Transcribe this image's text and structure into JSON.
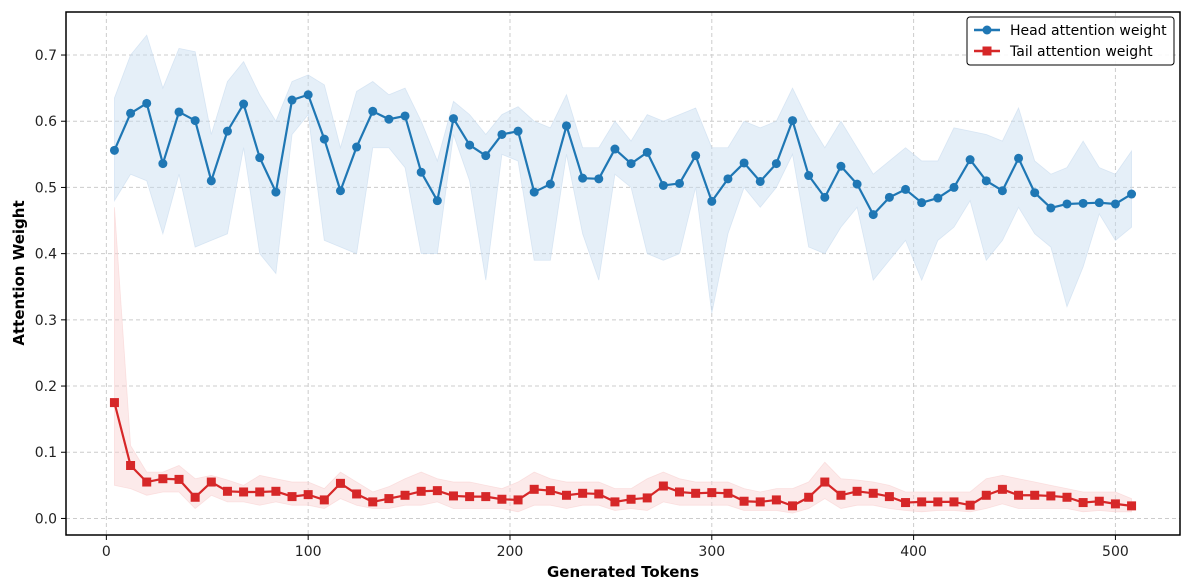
{
  "chart_data": {
    "type": "line",
    "title": "",
    "xlabel": "Generated Tokens",
    "ylabel": "Attention Weight",
    "xlim": [
      -20,
      532
    ],
    "ylim": [
      -0.025,
      0.765
    ],
    "xticks": [
      0,
      100,
      200,
      300,
      400,
      500
    ],
    "yticks": [
      0.0,
      0.1,
      0.2,
      0.3,
      0.4,
      0.5,
      0.6,
      0.7
    ],
    "grid": true,
    "legend_position": "top-right",
    "x": [
      4,
      12,
      20,
      28,
      36,
      44,
      52,
      60,
      68,
      76,
      84,
      92,
      100,
      108,
      116,
      124,
      132,
      140,
      148,
      156,
      164,
      172,
      180,
      188,
      196,
      204,
      212,
      220,
      228,
      236,
      244,
      252,
      260,
      268,
      276,
      284,
      292,
      300,
      308,
      316,
      324,
      332,
      340,
      348,
      356,
      364,
      372,
      380,
      388,
      396,
      404,
      412,
      420,
      428,
      436,
      444,
      452,
      460,
      468,
      476,
      484,
      492,
      500,
      508
    ],
    "series": [
      {
        "name": "Head attention weight",
        "color": "#1f77b4",
        "band_color": "#c6dbef",
        "marker": "circle",
        "values": [
          0.556,
          0.612,
          0.627,
          0.536,
          0.614,
          0.601,
          0.51,
          0.585,
          0.626,
          0.545,
          0.493,
          0.632,
          0.64,
          0.573,
          0.495,
          0.561,
          0.615,
          0.603,
          0.608,
          0.523,
          0.48,
          0.604,
          0.564,
          0.548,
          0.58,
          0.585,
          0.493,
          0.505,
          0.593,
          0.514,
          0.513,
          0.558,
          0.536,
          0.553,
          0.503,
          0.506,
          0.548,
          0.479,
          0.513,
          0.537,
          0.509,
          0.536,
          0.601,
          0.518,
          0.485,
          0.532,
          0.505,
          0.459,
          0.485,
          0.497,
          0.477,
          0.484,
          0.5,
          0.542,
          0.51,
          0.495,
          0.544,
          0.492,
          0.469,
          0.475,
          0.476,
          0.477,
          0.475,
          0.49
        ],
        "upper": [
          0.635,
          0.7,
          0.73,
          0.65,
          0.71,
          0.705,
          0.58,
          0.66,
          0.69,
          0.64,
          0.6,
          0.66,
          0.67,
          0.655,
          0.56,
          0.645,
          0.66,
          0.64,
          0.65,
          0.6,
          0.54,
          0.63,
          0.61,
          0.58,
          0.61,
          0.622,
          0.6,
          0.59,
          0.64,
          0.56,
          0.56,
          0.6,
          0.57,
          0.61,
          0.6,
          0.61,
          0.62,
          0.56,
          0.56,
          0.6,
          0.59,
          0.6,
          0.65,
          0.6,
          0.56,
          0.6,
          0.56,
          0.52,
          0.54,
          0.56,
          0.54,
          0.54,
          0.59,
          0.585,
          0.58,
          0.57,
          0.62,
          0.54,
          0.52,
          0.53,
          0.57,
          0.53,
          0.52,
          0.555
        ],
        "lower": [
          0.48,
          0.52,
          0.51,
          0.43,
          0.52,
          0.41,
          0.42,
          0.43,
          0.56,
          0.4,
          0.37,
          0.58,
          0.61,
          0.42,
          0.41,
          0.4,
          0.56,
          0.56,
          0.53,
          0.4,
          0.4,
          0.58,
          0.51,
          0.36,
          0.55,
          0.54,
          0.39,
          0.39,
          0.55,
          0.43,
          0.36,
          0.52,
          0.5,
          0.4,
          0.39,
          0.4,
          0.5,
          0.31,
          0.43,
          0.5,
          0.47,
          0.5,
          0.55,
          0.41,
          0.4,
          0.44,
          0.47,
          0.36,
          0.39,
          0.42,
          0.36,
          0.42,
          0.44,
          0.48,
          0.39,
          0.42,
          0.47,
          0.43,
          0.41,
          0.32,
          0.38,
          0.46,
          0.42,
          0.44
        ]
      },
      {
        "name": "Tail attention weight",
        "color": "#d62728",
        "band_color": "#f8d0d0",
        "marker": "square",
        "values": [
          0.175,
          0.08,
          0.055,
          0.06,
          0.059,
          0.032,
          0.055,
          0.041,
          0.04,
          0.04,
          0.041,
          0.033,
          0.036,
          0.028,
          0.053,
          0.037,
          0.025,
          0.03,
          0.035,
          0.041,
          0.042,
          0.034,
          0.033,
          0.033,
          0.029,
          0.028,
          0.044,
          0.042,
          0.035,
          0.038,
          0.037,
          0.025,
          0.029,
          0.031,
          0.049,
          0.04,
          0.038,
          0.039,
          0.038,
          0.026,
          0.025,
          0.028,
          0.019,
          0.032,
          0.055,
          0.035,
          0.041,
          0.038,
          0.033,
          0.024,
          0.025,
          0.025,
          0.025,
          0.02,
          0.035,
          0.044,
          0.035,
          0.035,
          0.034,
          0.032,
          0.024,
          0.026,
          0.022,
          0.019
        ],
        "upper": [
          0.47,
          0.11,
          0.07,
          0.07,
          0.08,
          0.06,
          0.065,
          0.058,
          0.05,
          0.065,
          0.06,
          0.055,
          0.055,
          0.045,
          0.07,
          0.055,
          0.04,
          0.048,
          0.06,
          0.07,
          0.06,
          0.055,
          0.055,
          0.05,
          0.045,
          0.055,
          0.07,
          0.06,
          0.055,
          0.055,
          0.055,
          0.045,
          0.045,
          0.06,
          0.07,
          0.06,
          0.055,
          0.055,
          0.055,
          0.045,
          0.04,
          0.045,
          0.045,
          0.055,
          0.085,
          0.06,
          0.058,
          0.055,
          0.05,
          0.04,
          0.04,
          0.04,
          0.04,
          0.04,
          0.06,
          0.065,
          0.06,
          0.055,
          0.05,
          0.045,
          0.04,
          0.04,
          0.04,
          0.03
        ],
        "lower": [
          0.05,
          0.045,
          0.035,
          0.04,
          0.04,
          0.015,
          0.035,
          0.025,
          0.025,
          0.02,
          0.025,
          0.02,
          0.02,
          0.015,
          0.03,
          0.02,
          0.015,
          0.015,
          0.02,
          0.02,
          0.025,
          0.015,
          0.015,
          0.015,
          0.015,
          0.01,
          0.02,
          0.02,
          0.015,
          0.02,
          0.02,
          0.012,
          0.015,
          0.012,
          0.025,
          0.02,
          0.02,
          0.02,
          0.02,
          0.012,
          0.012,
          0.012,
          0.008,
          0.015,
          0.03,
          0.015,
          0.02,
          0.02,
          0.015,
          0.012,
          0.01,
          0.012,
          0.012,
          0.01,
          0.015,
          0.022,
          0.015,
          0.015,
          0.015,
          0.015,
          0.01,
          0.012,
          0.01,
          0.01
        ]
      }
    ]
  }
}
